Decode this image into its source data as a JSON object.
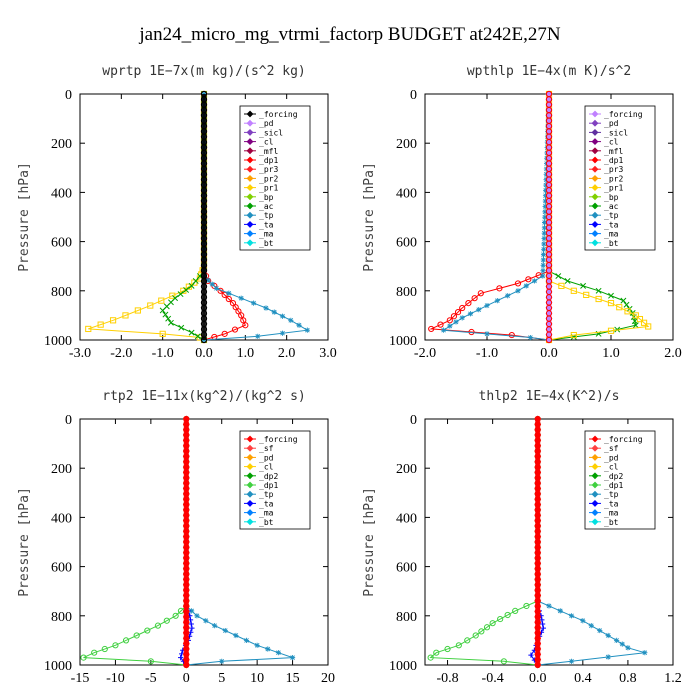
{
  "title": "jan24_micro_mg_vtrmi_factorp  BUDGET at242E,27N",
  "chart_data": [
    {
      "type": "line",
      "subtitle": "wprtp  1E−7x(m kg)/(s^2 kg)",
      "ylabel": "Pressure [hPa]",
      "xlim": [
        -3.0,
        3.0
      ],
      "xticks": [
        "-3.0",
        "-2.0",
        "-1.0",
        "0.0",
        "1.0",
        "2.0",
        "3.0"
      ],
      "ylim": [
        0,
        1000
      ],
      "yticks": [
        "0",
        "200",
        "400",
        "600",
        "800",
        "1000"
      ],
      "legend_position": "upper-right",
      "legend": [
        {
          "name": "_forcing",
          "color": "#000000"
        },
        {
          "name": "_pd",
          "color": "#c080ff"
        },
        {
          "name": "_sicl",
          "color": "#8040c0"
        },
        {
          "name": "_cl",
          "color": "#800080"
        },
        {
          "name": "_mfl",
          "color": "#a00040"
        },
        {
          "name": "_dp1",
          "color": "#ff0000"
        },
        {
          "name": "_pr3",
          "color": "#ff2020"
        },
        {
          "name": "_pr2",
          "color": "#ffa000"
        },
        {
          "name": "_pr1",
          "color": "#ffd000"
        },
        {
          "name": "_bp",
          "color": "#80d000"
        },
        {
          "name": "_ac",
          "color": "#00a000"
        },
        {
          "name": "_tp",
          "color": "#2090c0"
        },
        {
          "name": "_ta",
          "color": "#0000ff"
        },
        {
          "name": "_ma",
          "color": "#0080ff"
        },
        {
          "name": "_bt",
          "color": "#00e0e0"
        }
      ],
      "series": [
        {
          "legend": "_pr1",
          "color": "#ffd000",
          "marker": "square",
          "points": [
            [
              0,
              0
            ],
            [
              0,
              700
            ],
            [
              -0.1,
              750
            ],
            [
              -0.5,
              800
            ],
            [
              -1.3,
              860
            ],
            [
              -2.2,
              920
            ],
            [
              -2.8,
              955
            ],
            [
              -1.0,
              975
            ],
            [
              -0.1,
              990
            ],
            [
              0,
              1000
            ]
          ]
        },
        {
          "legend": "_ac",
          "color": "#00a000",
          "marker": "x",
          "points": [
            [
              0,
              0
            ],
            [
              0,
              720
            ],
            [
              -0.3,
              780
            ],
            [
              -0.7,
              830
            ],
            [
              -1.0,
              880
            ],
            [
              -0.8,
              930
            ],
            [
              -0.3,
              970
            ],
            [
              0,
              1000
            ]
          ]
        },
        {
          "legend": "_dp1",
          "color": "#ff0000",
          "marker": "circle",
          "points": [
            [
              0,
              0
            ],
            [
              0,
              720
            ],
            [
              0.1,
              760
            ],
            [
              0.4,
              800
            ],
            [
              0.7,
              850
            ],
            [
              0.9,
              900
            ],
            [
              1.0,
              940
            ],
            [
              0.5,
              975
            ],
            [
              0,
              1000
            ]
          ]
        },
        {
          "legend": "_tp",
          "color": "#2090c0",
          "marker": "star",
          "points": [
            [
              0,
              0
            ],
            [
              0,
              740
            ],
            [
              0.3,
              790
            ],
            [
              0.9,
              830
            ],
            [
              1.5,
              870
            ],
            [
              2.1,
              920
            ],
            [
              2.5,
              960
            ],
            [
              1.3,
              985
            ],
            [
              0,
              1000
            ]
          ]
        },
        {
          "legend": "_forcing",
          "color": "#000000",
          "marker": "circle",
          "points": [
            [
              0,
              0
            ],
            [
              0,
              1000
            ]
          ]
        }
      ]
    },
    {
      "type": "line",
      "subtitle": "wpthlp  1E−4x(m K)/s^2",
      "ylabel": "Pressure [hPa]",
      "xlim": [
        -2.0,
        2.0
      ],
      "xticks": [
        "-2.0",
        "-1.0",
        "0.0",
        "1.0",
        "2.0"
      ],
      "ylim": [
        0,
        1000
      ],
      "yticks": [
        "0",
        "200",
        "400",
        "600",
        "800",
        "1000"
      ],
      "legend_position": "upper-right",
      "legend": [
        {
          "name": "_forcing",
          "color": "#c080ff"
        },
        {
          "name": "_pd",
          "color": "#8040c0"
        },
        {
          "name": "_sicl",
          "color": "#6030a0"
        },
        {
          "name": "_cl",
          "color": "#800080"
        },
        {
          "name": "_mfl",
          "color": "#a00040"
        },
        {
          "name": "_dp1",
          "color": "#ff0000"
        },
        {
          "name": "_pr3",
          "color": "#ff2020"
        },
        {
          "name": "_pr2",
          "color": "#ffa000"
        },
        {
          "name": "_pr1",
          "color": "#ffd000"
        },
        {
          "name": "_bp",
          "color": "#80d000"
        },
        {
          "name": "_ac",
          "color": "#00a000"
        },
        {
          "name": "_tp",
          "color": "#2090c0"
        },
        {
          "name": "_ta",
          "color": "#0000ff"
        },
        {
          "name": "_ma",
          "color": "#0080ff"
        },
        {
          "name": "_bt",
          "color": "#00e0e0"
        }
      ],
      "series": [
        {
          "legend": "_ac",
          "color": "#00a000",
          "marker": "x",
          "points": [
            [
              0,
              0
            ],
            [
              0,
              720
            ],
            [
              0.3,
              760
            ],
            [
              0.8,
              800
            ],
            [
              1.2,
              840
            ],
            [
              1.35,
              890
            ],
            [
              1.4,
              940
            ],
            [
              0.8,
              975
            ],
            [
              0,
              1000
            ]
          ]
        },
        {
          "legend": "_pr1",
          "color": "#ffd000",
          "marker": "square",
          "points": [
            [
              0,
              0
            ],
            [
              0,
              760
            ],
            [
              0.4,
              800
            ],
            [
              1.0,
              850
            ],
            [
              1.4,
              900
            ],
            [
              1.6,
              945
            ],
            [
              0.4,
              980
            ],
            [
              0,
              1000
            ]
          ]
        },
        {
          "legend": "_dp1",
          "color": "#ff0000",
          "marker": "circle",
          "points": [
            [
              0,
              0
            ],
            [
              0,
              720
            ],
            [
              -0.5,
              770
            ],
            [
              -1.1,
              810
            ],
            [
              -1.4,
              870
            ],
            [
              -1.6,
              920
            ],
            [
              -1.9,
              955
            ],
            [
              -0.6,
              980
            ],
            [
              0,
              1000
            ]
          ]
        },
        {
          "legend": "_tp",
          "color": "#2090c0",
          "marker": "star",
          "points": [
            [
              0,
              0
            ],
            [
              -0.1,
              740
            ],
            [
              -0.5,
              800
            ],
            [
              -1.0,
              860
            ],
            [
              -1.4,
              910
            ],
            [
              -1.7,
              960
            ],
            [
              -0.3,
              990
            ],
            [
              0,
              1000
            ]
          ]
        },
        {
          "legend": "_bt",
          "color": "#00e0e0",
          "marker": "diamond",
          "points": [
            [
              0,
              0
            ],
            [
              0,
              1000
            ]
          ]
        },
        {
          "legend": "_forcing",
          "color": "#c080ff",
          "marker": "diamond",
          "points": [
            [
              0,
              0
            ],
            [
              0,
              1000
            ]
          ]
        }
      ]
    },
    {
      "type": "line",
      "subtitle": "rtp2  1E−11x(kg^2)/(kg^2 s)",
      "ylabel": "Pressure [hPa]",
      "xlim": [
        -15,
        20
      ],
      "xticks": [
        "-15",
        "-10",
        "-5",
        "0",
        "5",
        "10",
        "15",
        "20"
      ],
      "ylim": [
        0,
        1000
      ],
      "yticks": [
        "0",
        "200",
        "400",
        "600",
        "800",
        "1000"
      ],
      "legend_position": "upper-right",
      "legend": [
        {
          "name": "_forcing",
          "color": "#ff0000"
        },
        {
          "name": "_sf",
          "color": "#ff4040"
        },
        {
          "name": "_pd",
          "color": "#ffa000"
        },
        {
          "name": "_cl",
          "color": "#ffd000"
        },
        {
          "name": "_dp2",
          "color": "#00a000"
        },
        {
          "name": "_dp1",
          "color": "#40d040"
        },
        {
          "name": "_tp",
          "color": "#2090c0"
        },
        {
          "name": "_ta",
          "color": "#0000ff"
        },
        {
          "name": "_ma",
          "color": "#0080ff"
        },
        {
          "name": "_bt",
          "color": "#00e0e0"
        }
      ],
      "series": [
        {
          "legend": "_dp1",
          "color": "#40d040",
          "marker": "circle",
          "points": [
            [
              0,
              0
            ],
            [
              0,
              760
            ],
            [
              -1.5,
              800
            ],
            [
              -4.0,
              840
            ],
            [
              -7.0,
              880
            ],
            [
              -10.0,
              920
            ],
            [
              -13.0,
              950
            ],
            [
              -14.5,
              970
            ],
            [
              -5.0,
              985
            ],
            [
              0,
              1000
            ]
          ]
        },
        {
          "legend": "_tp",
          "color": "#2090c0",
          "marker": "star",
          "points": [
            [
              0,
              0
            ],
            [
              0,
              760
            ],
            [
              1.5,
              800
            ],
            [
              4.0,
              840
            ],
            [
              7.0,
              880
            ],
            [
              10.0,
              920
            ],
            [
              13.0,
              950
            ],
            [
              15.0,
              970
            ],
            [
              5.0,
              985
            ],
            [
              0,
              1000
            ]
          ]
        },
        {
          "legend": "_ta",
          "color": "#0000ff",
          "marker": "plus",
          "points": [
            [
              0,
              0
            ],
            [
              0,
              760
            ],
            [
              0.5,
              800
            ],
            [
              0.8,
              850
            ],
            [
              0.3,
              900
            ],
            [
              -0.5,
              940
            ],
            [
              -0.8,
              970
            ],
            [
              0,
              1000
            ]
          ]
        },
        {
          "legend": "_forcing",
          "color": "#ff0000",
          "marker": "diamond",
          "points": [
            [
              0,
              0
            ],
            [
              0,
              1000
            ]
          ]
        }
      ]
    },
    {
      "type": "line",
      "subtitle": "thlp2  1E−4x(K^2)/s",
      "ylabel": "Pressure [hPa]",
      "xlim": [
        -1.0,
        1.2
      ],
      "xticks": [
        "-0.8",
        "-0.4",
        "0.0",
        "0.4",
        "0.8",
        "1.2"
      ],
      "xtick_values": [
        -0.8,
        -0.4,
        0.0,
        0.4,
        0.8,
        1.2
      ],
      "ylim": [
        0,
        1000
      ],
      "yticks": [
        "0",
        "200",
        "400",
        "600",
        "800",
        "1000"
      ],
      "legend_position": "upper-right",
      "legend": [
        {
          "name": "_forcing",
          "color": "#ff0000"
        },
        {
          "name": "_sf",
          "color": "#ff4040"
        },
        {
          "name": "_pd",
          "color": "#ffa000"
        },
        {
          "name": "_cl",
          "color": "#ffd000"
        },
        {
          "name": "_dp2",
          "color": "#00a000"
        },
        {
          "name": "_dp1",
          "color": "#40d040"
        },
        {
          "name": "_tp",
          "color": "#2090c0"
        },
        {
          "name": "_ta",
          "color": "#0000ff"
        },
        {
          "name": "_ma",
          "color": "#0080ff"
        },
        {
          "name": "_bt",
          "color": "#00e0e0"
        }
      ],
      "series": [
        {
          "legend": "_dp1",
          "color": "#40d040",
          "marker": "circle",
          "points": [
            [
              0,
              0
            ],
            [
              0,
              740
            ],
            [
              -0.2,
              780
            ],
            [
              -0.4,
              830
            ],
            [
              -0.55,
              880
            ],
            [
              -0.7,
              920
            ],
            [
              -0.9,
              950
            ],
            [
              -0.95,
              970
            ],
            [
              -0.3,
              985
            ],
            [
              0,
              1000
            ]
          ]
        },
        {
          "legend": "_tp",
          "color": "#2090c0",
          "marker": "star",
          "points": [
            [
              0,
              0
            ],
            [
              0,
              740
            ],
            [
              0.2,
              780
            ],
            [
              0.4,
              820
            ],
            [
              0.55,
              860
            ],
            [
              0.7,
              900
            ],
            [
              0.8,
              930
            ],
            [
              0.95,
              950
            ],
            [
              0.3,
              985
            ],
            [
              0,
              1000
            ]
          ]
        },
        {
          "legend": "_ta",
          "color": "#0000ff",
          "marker": "plus",
          "points": [
            [
              0,
              0
            ],
            [
              0,
              760
            ],
            [
              0.03,
              800
            ],
            [
              0.05,
              850
            ],
            [
              0.0,
              900
            ],
            [
              -0.03,
              940
            ],
            [
              -0.06,
              960
            ],
            [
              0,
              1000
            ]
          ]
        },
        {
          "legend": "_forcing",
          "color": "#ff0000",
          "marker": "diamond",
          "points": [
            [
              0,
              0
            ],
            [
              0,
              1000
            ]
          ]
        }
      ]
    }
  ]
}
